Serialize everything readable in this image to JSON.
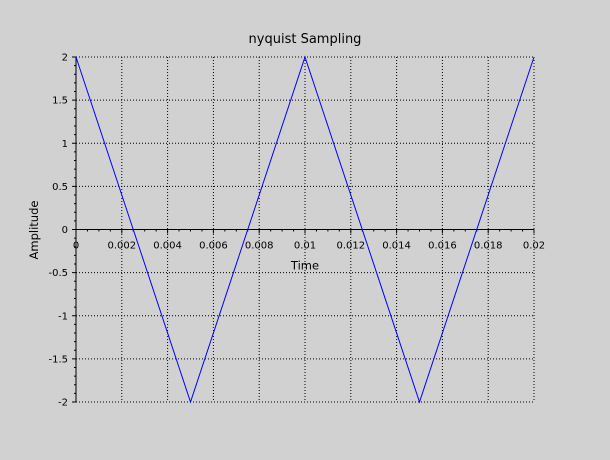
{
  "chart_data": {
    "type": "line",
    "title": "nyquist Sampling",
    "xlabel": "Time",
    "ylabel": "Amplitude",
    "xlim": [
      0,
      0.02
    ],
    "ylim": [
      -2,
      2
    ],
    "xticks": [
      0,
      0.002,
      0.004,
      0.006,
      0.008,
      0.01,
      0.012,
      0.014,
      0.016,
      0.018,
      0.02
    ],
    "xtick_labels": [
      "0",
      "0.002",
      "0.004",
      "0.006",
      "0.008",
      "0.01",
      "0.012",
      "0.014",
      "0.016",
      "0.018",
      "0.02"
    ],
    "yticks": [
      2,
      1.5,
      1,
      0.5,
      0,
      -0.5,
      -1,
      -1.5,
      -2
    ],
    "ytick_labels": [
      "2",
      "1.5",
      "1",
      "0.5",
      "0",
      "-0.5",
      "-1",
      "-1.5",
      "-2"
    ],
    "grid": true,
    "colors": {
      "background": "#d1d1d1",
      "axes": "#000000",
      "grid": "#000000",
      "line": "#0000ff"
    },
    "series": [
      {
        "x": [
          0,
          0.005,
          0.01,
          0.015,
          0.02
        ],
        "y": [
          2,
          -2,
          2,
          -2,
          2
        ]
      }
    ]
  }
}
